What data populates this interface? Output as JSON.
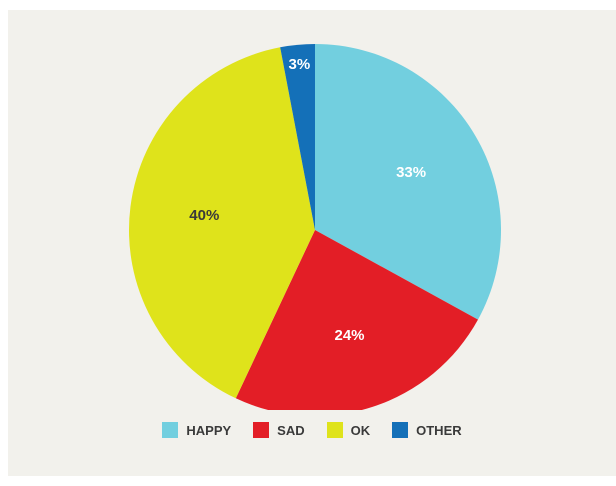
{
  "chart_data": {
    "type": "pie",
    "slices": [
      {
        "label": "HAPPY",
        "value": 33,
        "display": "33%",
        "color": "#72cfdf",
        "text_color": "#ffffff"
      },
      {
        "label": "SAD",
        "value": 24,
        "display": "24%",
        "color": "#e31e26",
        "text_color": "#ffffff"
      },
      {
        "label": "OK",
        "value": 40,
        "display": "40%",
        "color": "#dfe31b",
        "text_color": "#3a3a3a"
      },
      {
        "label": "OTHER",
        "value": 3,
        "display": "3%",
        "color": "#1470b8",
        "text_color": "#ffffff"
      }
    ],
    "start_angle": "12 o'clock",
    "direction": "clockwise",
    "legend_position": "bottom"
  },
  "colors": {
    "background": "#f2f1ec"
  }
}
